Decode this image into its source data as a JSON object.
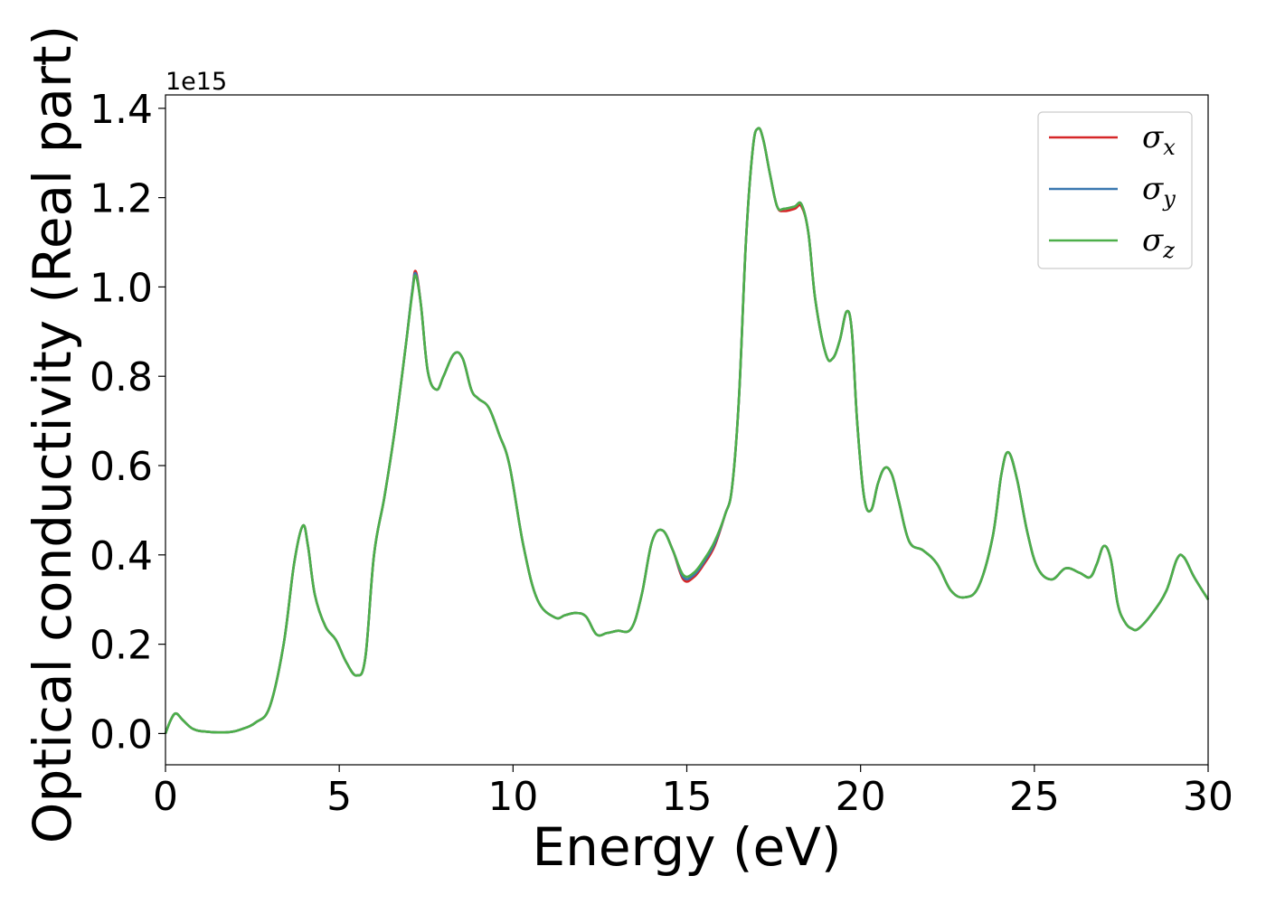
{
  "chart_data": {
    "type": "line",
    "title": "",
    "xlabel": "Energy (eV)",
    "ylabel": "Optical conductivity (Real part)",
    "y_offset_text": "1e15",
    "y_scale_factor": 1000000000000000.0,
    "xlim": [
      0,
      30
    ],
    "ylim": [
      -0.07,
      1.43
    ],
    "xticks": [
      0,
      5,
      10,
      15,
      20,
      25,
      30
    ],
    "xtick_labels": [
      "0",
      "5",
      "10",
      "15",
      "20",
      "25",
      "30"
    ],
    "yticks": [
      0.0,
      0.2,
      0.4,
      0.6,
      0.8,
      1.0,
      1.2,
      1.4
    ],
    "ytick_labels": [
      "0.0",
      "0.2",
      "0.4",
      "0.6",
      "0.8",
      "1.0",
      "1.2",
      "1.4"
    ],
    "grid": false,
    "legend_position": "top-right",
    "x": [
      0,
      0.15,
      0.3,
      0.5,
      0.8,
      1.2,
      1.8,
      2.2,
      2.6,
      3.0,
      3.4,
      3.7,
      3.95,
      4.1,
      4.3,
      4.6,
      4.9,
      5.2,
      5.5,
      5.75,
      6.0,
      6.3,
      6.6,
      6.9,
      7.1,
      7.2,
      7.35,
      7.55,
      7.8,
      8.0,
      8.3,
      8.55,
      8.8,
      9.0,
      9.3,
      9.6,
      9.9,
      10.3,
      10.7,
      11.2,
      11.5,
      11.8,
      12.1,
      12.4,
      12.7,
      13.0,
      13.4,
      13.7,
      14.0,
      14.3,
      14.6,
      14.9,
      15.2,
      15.5,
      15.8,
      16.1,
      16.3,
      16.5,
      16.7,
      16.9,
      17.05,
      17.2,
      17.4,
      17.6,
      17.8,
      18.1,
      18.3,
      18.5,
      18.7,
      19.0,
      19.2,
      19.4,
      19.6,
      19.75,
      19.9,
      20.1,
      20.3,
      20.5,
      20.7,
      20.9,
      21.1,
      21.4,
      21.8,
      22.2,
      22.6,
      23.0,
      23.4,
      23.8,
      24.05,
      24.25,
      24.5,
      24.8,
      25.1,
      25.5,
      25.9,
      26.3,
      26.6,
      26.8,
      27.0,
      27.2,
      27.4,
      27.6,
      27.8,
      28.0,
      28.4,
      28.8,
      29.1,
      29.3,
      29.6,
      30.0
    ],
    "series": [
      {
        "name": "σx",
        "color": "#d62728",
        "values": [
          0.0,
          0.03,
          0.045,
          0.03,
          0.01,
          0.004,
          0.003,
          0.01,
          0.025,
          0.06,
          0.2,
          0.38,
          0.465,
          0.42,
          0.31,
          0.24,
          0.21,
          0.16,
          0.13,
          0.17,
          0.4,
          0.53,
          0.68,
          0.86,
          0.99,
          1.035,
          0.96,
          0.81,
          0.77,
          0.8,
          0.85,
          0.84,
          0.77,
          0.75,
          0.73,
          0.67,
          0.6,
          0.42,
          0.3,
          0.26,
          0.265,
          0.27,
          0.262,
          0.222,
          0.225,
          0.23,
          0.235,
          0.31,
          0.43,
          0.455,
          0.41,
          0.345,
          0.35,
          0.38,
          0.42,
          0.49,
          0.55,
          0.75,
          1.1,
          1.31,
          1.355,
          1.33,
          1.25,
          1.18,
          1.17,
          1.175,
          1.18,
          1.12,
          0.97,
          0.85,
          0.84,
          0.88,
          0.945,
          0.9,
          0.7,
          0.53,
          0.5,
          0.56,
          0.595,
          0.58,
          0.52,
          0.43,
          0.41,
          0.38,
          0.32,
          0.305,
          0.33,
          0.44,
          0.58,
          0.63,
          0.57,
          0.45,
          0.37,
          0.345,
          0.37,
          0.36,
          0.35,
          0.38,
          0.42,
          0.39,
          0.29,
          0.25,
          0.235,
          0.235,
          0.27,
          0.32,
          0.39,
          0.395,
          0.35,
          0.3
        ]
      },
      {
        "name": "σy",
        "color": "#3a78b0",
        "values": [
          0.0,
          0.03,
          0.045,
          0.03,
          0.01,
          0.004,
          0.003,
          0.01,
          0.025,
          0.06,
          0.2,
          0.38,
          0.465,
          0.42,
          0.31,
          0.24,
          0.21,
          0.16,
          0.13,
          0.17,
          0.4,
          0.53,
          0.68,
          0.86,
          0.99,
          1.03,
          0.96,
          0.81,
          0.77,
          0.8,
          0.85,
          0.84,
          0.77,
          0.75,
          0.73,
          0.67,
          0.6,
          0.42,
          0.3,
          0.26,
          0.265,
          0.27,
          0.262,
          0.222,
          0.225,
          0.23,
          0.235,
          0.31,
          0.43,
          0.455,
          0.41,
          0.35,
          0.355,
          0.385,
          0.425,
          0.49,
          0.55,
          0.75,
          1.1,
          1.31,
          1.355,
          1.33,
          1.25,
          1.18,
          1.175,
          1.18,
          1.185,
          1.12,
          0.97,
          0.85,
          0.84,
          0.88,
          0.945,
          0.9,
          0.7,
          0.53,
          0.5,
          0.56,
          0.595,
          0.58,
          0.52,
          0.43,
          0.41,
          0.38,
          0.32,
          0.305,
          0.33,
          0.44,
          0.58,
          0.63,
          0.57,
          0.45,
          0.37,
          0.345,
          0.37,
          0.36,
          0.35,
          0.38,
          0.42,
          0.39,
          0.29,
          0.25,
          0.235,
          0.235,
          0.27,
          0.32,
          0.39,
          0.395,
          0.35,
          0.3
        ]
      },
      {
        "name": "σz",
        "color": "#4daf4a",
        "values": [
          0.0,
          0.03,
          0.045,
          0.03,
          0.01,
          0.004,
          0.003,
          0.01,
          0.025,
          0.06,
          0.2,
          0.38,
          0.465,
          0.42,
          0.31,
          0.24,
          0.21,
          0.16,
          0.13,
          0.17,
          0.4,
          0.53,
          0.68,
          0.86,
          0.985,
          1.025,
          0.96,
          0.81,
          0.77,
          0.8,
          0.85,
          0.84,
          0.77,
          0.75,
          0.73,
          0.67,
          0.6,
          0.42,
          0.3,
          0.26,
          0.265,
          0.27,
          0.262,
          0.222,
          0.225,
          0.23,
          0.235,
          0.31,
          0.43,
          0.455,
          0.41,
          0.355,
          0.36,
          0.39,
          0.43,
          0.49,
          0.55,
          0.75,
          1.1,
          1.31,
          1.355,
          1.33,
          1.25,
          1.18,
          1.175,
          1.18,
          1.185,
          1.12,
          0.97,
          0.85,
          0.84,
          0.88,
          0.945,
          0.9,
          0.7,
          0.53,
          0.5,
          0.56,
          0.595,
          0.58,
          0.52,
          0.43,
          0.41,
          0.38,
          0.32,
          0.305,
          0.33,
          0.44,
          0.58,
          0.63,
          0.57,
          0.45,
          0.37,
          0.345,
          0.37,
          0.36,
          0.35,
          0.38,
          0.42,
          0.39,
          0.29,
          0.25,
          0.235,
          0.235,
          0.27,
          0.32,
          0.39,
          0.395,
          0.35,
          0.3
        ]
      }
    ],
    "legend_entries": [
      {
        "symbol": "σ",
        "subscript": "x",
        "series_index": 0
      },
      {
        "symbol": "σ",
        "subscript": "y",
        "series_index": 1
      },
      {
        "symbol": "σ",
        "subscript": "z",
        "series_index": 2
      }
    ]
  }
}
